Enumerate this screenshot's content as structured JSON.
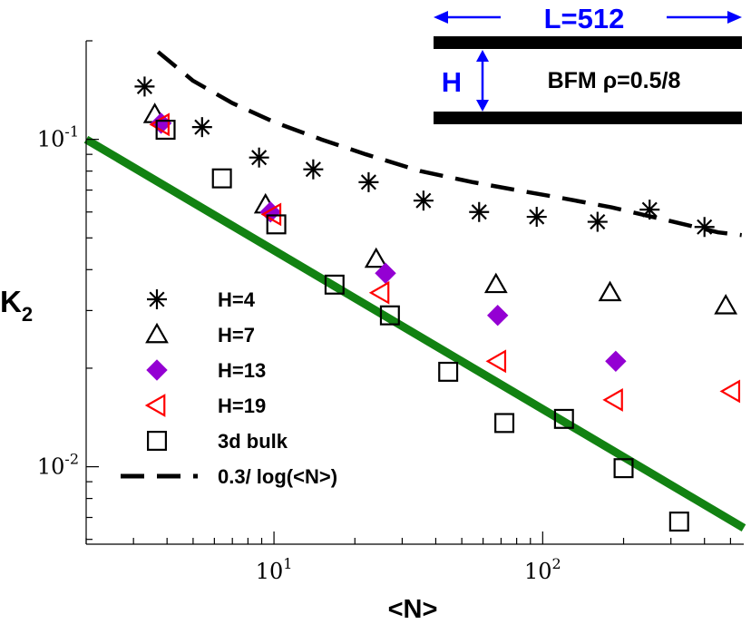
{
  "chart_data": {
    "type": "scatter",
    "xscale": "log",
    "yscale": "log",
    "xlim": [
      2.0,
      560
    ],
    "ylim": [
      0.0058,
      0.2
    ],
    "xlabel": "<N>",
    "ylabel_main": "K",
    "ylabel_sub": "2",
    "x_ticks": [
      {
        "value": 10,
        "base": "10",
        "exp": "1"
      },
      {
        "value": 100,
        "base": "10",
        "exp": "2"
      }
    ],
    "y_ticks": [
      {
        "value": 0.1,
        "base": "10",
        "exp": "-1"
      },
      {
        "value": 0.01,
        "base": "10",
        "exp": "-2"
      }
    ],
    "series": [
      {
        "name": "H=4",
        "marker": "asterisk",
        "color": "#000000",
        "points": [
          [
            3.3,
            0.145
          ],
          [
            5.4,
            0.109
          ],
          [
            8.8,
            0.088
          ],
          [
            14,
            0.081
          ],
          [
            22.5,
            0.074
          ],
          [
            36,
            0.065
          ],
          [
            58,
            0.06
          ],
          [
            95,
            0.058
          ],
          [
            160,
            0.056
          ],
          [
            250,
            0.061
          ],
          [
            400,
            0.054
          ]
        ]
      },
      {
        "name": "H=7",
        "marker": "triangle-up",
        "color": "#000000",
        "points": [
          [
            3.6,
            0.119
          ],
          [
            9.3,
            0.063
          ],
          [
            24,
            0.043
          ],
          [
            67,
            0.036
          ],
          [
            178,
            0.034
          ],
          [
            480,
            0.031
          ]
        ]
      },
      {
        "name": "H=13",
        "marker": "diamond",
        "color": "#9400d3",
        "points": [
          [
            3.8,
            0.112
          ],
          [
            9.7,
            0.06
          ],
          [
            26,
            0.039
          ],
          [
            68,
            0.029
          ],
          [
            187,
            0.021
          ]
        ]
      },
      {
        "name": "H=19",
        "marker": "triangle-left",
        "color": "#ff0000",
        "points": [
          [
            3.8,
            0.111
          ],
          [
            9.9,
            0.059
          ],
          [
            25,
            0.034
          ],
          [
            68,
            0.021
          ],
          [
            185,
            0.016
          ],
          [
            505,
            0.017
          ]
        ]
      },
      {
        "name": "3d bulk",
        "marker": "square",
        "color": "#000000",
        "points": [
          [
            3.95,
            0.107
          ],
          [
            6.4,
            0.076
          ],
          [
            10.2,
            0.055
          ],
          [
            16.8,
            0.036
          ],
          [
            27,
            0.029
          ],
          [
            44.5,
            0.0195
          ],
          [
            72,
            0.0136
          ],
          [
            120,
            0.014
          ],
          [
            200,
            0.0099
          ],
          [
            322,
            0.0068
          ]
        ]
      }
    ],
    "curves": [
      {
        "name": "0.3/ log(<N>)",
        "style": "dashed",
        "color": "#000000",
        "points": [
          [
            3.7,
            0.185
          ],
          [
            5,
            0.151
          ],
          [
            7,
            0.129
          ],
          [
            10,
            0.113
          ],
          [
            15,
            0.1
          ],
          [
            22,
            0.09
          ],
          [
            35,
            0.08
          ],
          [
            55,
            0.074
          ],
          [
            80,
            0.07
          ],
          [
            120,
            0.066
          ],
          [
            180,
            0.062
          ],
          [
            280,
            0.057
          ],
          [
            450,
            0.052
          ],
          [
            550,
            0.051
          ]
        ]
      },
      {
        "name": "",
        "style": "solid",
        "color": "#128212",
        "points": [
          [
            2.0,
            0.1
          ],
          [
            560,
            0.0065
          ]
        ]
      }
    ],
    "legend_position": "lower-left",
    "inset": {
      "width_label": "L=512",
      "height_label": "H",
      "caption": "BFM ρ=0.5/8"
    }
  }
}
